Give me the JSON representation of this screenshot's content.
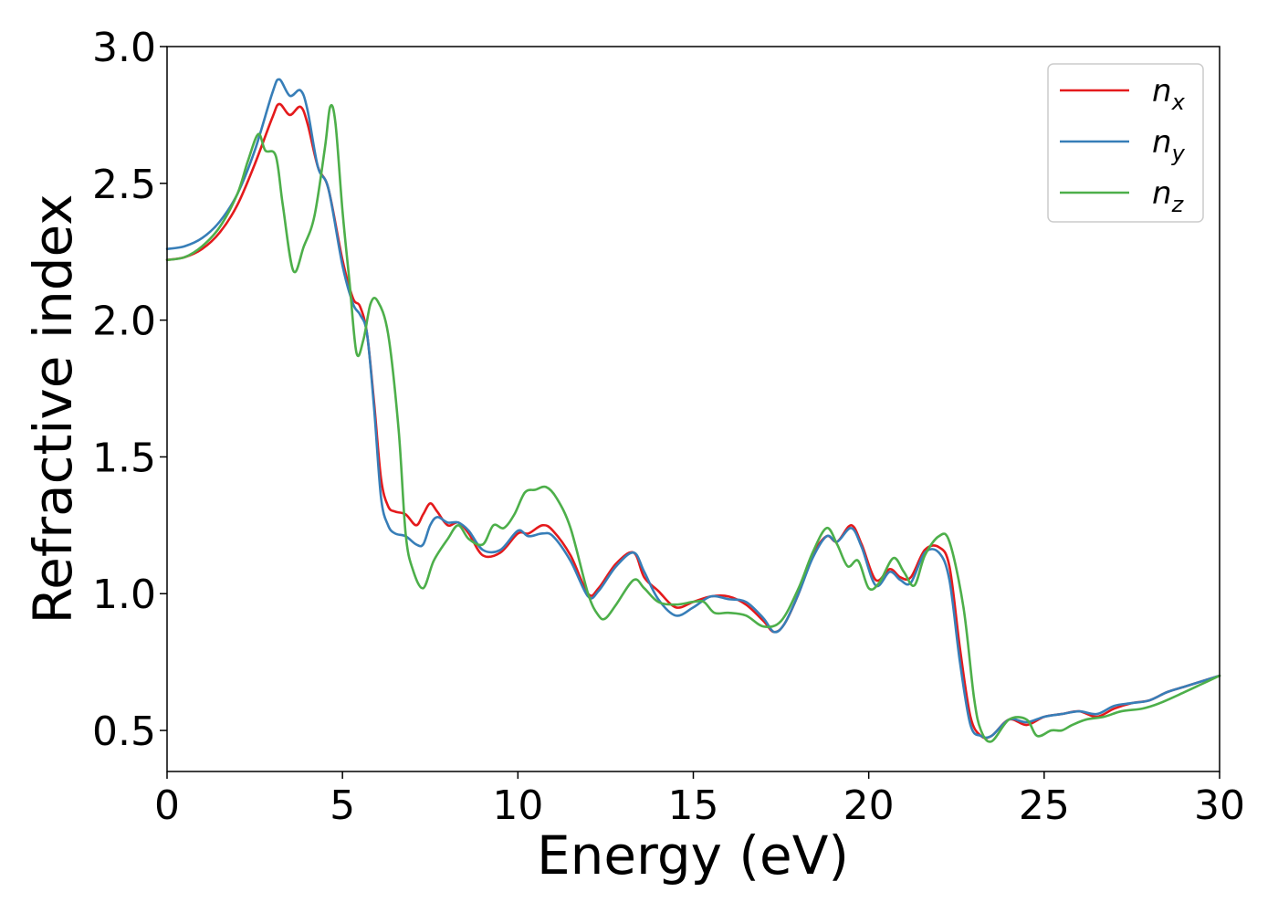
{
  "chart_data": {
    "type": "line",
    "xlabel": "Energy (eV)",
    "ylabel": "Refractive index",
    "xlim": [
      0,
      30
    ],
    "ylim": [
      0.35,
      3.0
    ],
    "xticks": [
      0,
      5,
      10,
      15,
      20,
      25,
      30
    ],
    "xtick_labels": [
      "0",
      "5",
      "10",
      "15",
      "20",
      "25",
      "30"
    ],
    "yticks": [
      0.5,
      1.0,
      1.5,
      2.0,
      2.5,
      3.0
    ],
    "ytick_labels": [
      "0.5",
      "1.0",
      "1.5",
      "2.0",
      "2.5",
      "3.0"
    ],
    "grid": false,
    "legend": "top-right",
    "series": [
      {
        "name": "n",
        "subscript": "x",
        "color": "#e41a1c",
        "x": [
          0,
          0.5,
          1,
          1.5,
          2,
          2.5,
          3,
          3.2,
          3.5,
          3.8,
          4,
          4.3,
          4.6,
          5,
          5.3,
          5.5,
          5.7,
          5.9,
          6.1,
          6.3,
          6.5,
          6.8,
          7.1,
          7.3,
          7.5,
          7.7,
          8,
          8.3,
          8.6,
          9,
          9.5,
          10,
          10.3,
          10.7,
          11,
          11.5,
          12,
          12.3,
          12.8,
          13.3,
          13.6,
          14,
          14.5,
          15,
          15.5,
          16,
          16.5,
          17,
          17.3,
          17.6,
          18,
          18.4,
          18.8,
          19.1,
          19.5,
          19.8,
          20.2,
          20.6,
          20.9,
          21.2,
          21.6,
          22,
          22.3,
          22.6,
          22.9,
          23.2,
          23.5,
          24,
          24.5,
          25,
          25.5,
          26,
          26.5,
          27,
          27.5,
          28,
          28.5,
          29,
          29.5,
          30
        ],
        "y": [
          2.22,
          2.23,
          2.26,
          2.32,
          2.42,
          2.57,
          2.74,
          2.79,
          2.75,
          2.78,
          2.72,
          2.56,
          2.48,
          2.22,
          2.08,
          2.05,
          1.95,
          1.7,
          1.42,
          1.32,
          1.3,
          1.29,
          1.25,
          1.29,
          1.33,
          1.3,
          1.25,
          1.26,
          1.22,
          1.14,
          1.15,
          1.22,
          1.22,
          1.25,
          1.23,
          1.14,
          1.0,
          1.02,
          1.11,
          1.15,
          1.06,
          1.01,
          0.95,
          0.97,
          0.99,
          0.99,
          0.96,
          0.9,
          0.86,
          0.89,
          1.0,
          1.14,
          1.21,
          1.19,
          1.25,
          1.18,
          1.05,
          1.09,
          1.06,
          1.06,
          1.16,
          1.17,
          1.1,
          0.8,
          0.55,
          0.48,
          0.48,
          0.54,
          0.52,
          0.55,
          0.56,
          0.57,
          0.55,
          0.58,
          0.6,
          0.61,
          0.64,
          0.66,
          0.68,
          0.7
        ]
      },
      {
        "name": "n",
        "subscript": "y",
        "color": "#377eb8",
        "x": [
          0,
          0.5,
          1,
          1.5,
          2,
          2.5,
          3,
          3.2,
          3.5,
          3.8,
          4,
          4.3,
          4.6,
          5,
          5.3,
          5.5,
          5.7,
          5.9,
          6.1,
          6.3,
          6.5,
          6.8,
          7.1,
          7.3,
          7.5,
          7.7,
          8,
          8.3,
          8.6,
          9,
          9.5,
          10,
          10.3,
          10.7,
          11,
          11.5,
          12,
          12.3,
          12.8,
          13.3,
          13.6,
          14,
          14.5,
          15,
          15.5,
          16,
          16.5,
          17,
          17.3,
          17.6,
          18,
          18.4,
          18.8,
          19.1,
          19.5,
          19.8,
          20.2,
          20.6,
          20.9,
          21.2,
          21.6,
          22,
          22.3,
          22.6,
          22.9,
          23.2,
          23.5,
          24,
          24.5,
          25,
          25.5,
          26,
          26.5,
          27,
          27.5,
          28,
          28.5,
          29,
          29.5,
          30
        ],
        "y": [
          2.26,
          2.27,
          2.3,
          2.36,
          2.46,
          2.62,
          2.83,
          2.88,
          2.82,
          2.84,
          2.77,
          2.56,
          2.48,
          2.2,
          2.06,
          2.02,
          1.95,
          1.68,
          1.35,
          1.25,
          1.22,
          1.21,
          1.18,
          1.18,
          1.25,
          1.28,
          1.26,
          1.26,
          1.23,
          1.16,
          1.16,
          1.23,
          1.21,
          1.22,
          1.21,
          1.12,
          0.99,
          1.01,
          1.1,
          1.15,
          1.08,
          0.98,
          0.92,
          0.95,
          0.99,
          0.98,
          0.97,
          0.91,
          0.86,
          0.89,
          1.0,
          1.13,
          1.21,
          1.19,
          1.24,
          1.17,
          1.03,
          1.08,
          1.05,
          1.04,
          1.15,
          1.15,
          1.05,
          0.75,
          0.52,
          0.48,
          0.48,
          0.54,
          0.53,
          0.55,
          0.56,
          0.57,
          0.56,
          0.59,
          0.6,
          0.61,
          0.64,
          0.66,
          0.68,
          0.7
        ]
      },
      {
        "name": "n",
        "subscript": "z",
        "color": "#4daf4a",
        "x": [
          0,
          0.5,
          1,
          1.5,
          2,
          2.3,
          2.6,
          2.8,
          3.1,
          3.3,
          3.6,
          3.9,
          4.2,
          4.5,
          4.65,
          4.8,
          5.0,
          5.2,
          5.4,
          5.6,
          5.8,
          6.0,
          6.3,
          6.6,
          6.8,
          7.0,
          7.3,
          7.6,
          8.0,
          8.3,
          8.6,
          9.0,
          9.3,
          9.6,
          9.9,
          10.2,
          10.5,
          10.8,
          11.1,
          11.5,
          12.0,
          12.3,
          12.5,
          12.8,
          13.3,
          13.6,
          14.0,
          14.5,
          15.0,
          15.3,
          15.6,
          16.0,
          16.5,
          17.0,
          17.5,
          18.0,
          18.4,
          18.8,
          19.1,
          19.4,
          19.7,
          20.0,
          20.3,
          20.7,
          21.0,
          21.3,
          21.6,
          22.0,
          22.3,
          22.7,
          23.0,
          23.2,
          23.5,
          24.0,
          24.5,
          24.8,
          25.2,
          25.5,
          25.8,
          26.2,
          26.7,
          27.2,
          27.8,
          28.3,
          29.0,
          29.5,
          30.0
        ],
        "y": [
          2.22,
          2.23,
          2.27,
          2.34,
          2.46,
          2.58,
          2.68,
          2.62,
          2.6,
          2.42,
          2.18,
          2.27,
          2.38,
          2.63,
          2.78,
          2.72,
          2.4,
          2.14,
          1.88,
          1.93,
          2.06,
          2.07,
          1.95,
          1.6,
          1.22,
          1.09,
          1.02,
          1.12,
          1.2,
          1.25,
          1.2,
          1.18,
          1.25,
          1.24,
          1.29,
          1.37,
          1.38,
          1.39,
          1.35,
          1.24,
          1.0,
          0.92,
          0.91,
          0.96,
          1.05,
          1.02,
          0.97,
          0.96,
          0.97,
          0.97,
          0.93,
          0.93,
          0.92,
          0.88,
          0.9,
          1.02,
          1.15,
          1.24,
          1.18,
          1.1,
          1.12,
          1.02,
          1.04,
          1.13,
          1.08,
          1.03,
          1.14,
          1.21,
          1.19,
          0.95,
          0.62,
          0.5,
          0.46,
          0.54,
          0.54,
          0.48,
          0.5,
          0.5,
          0.52,
          0.54,
          0.55,
          0.57,
          0.58,
          0.6,
          0.64,
          0.67,
          0.7
        ]
      }
    ]
  }
}
